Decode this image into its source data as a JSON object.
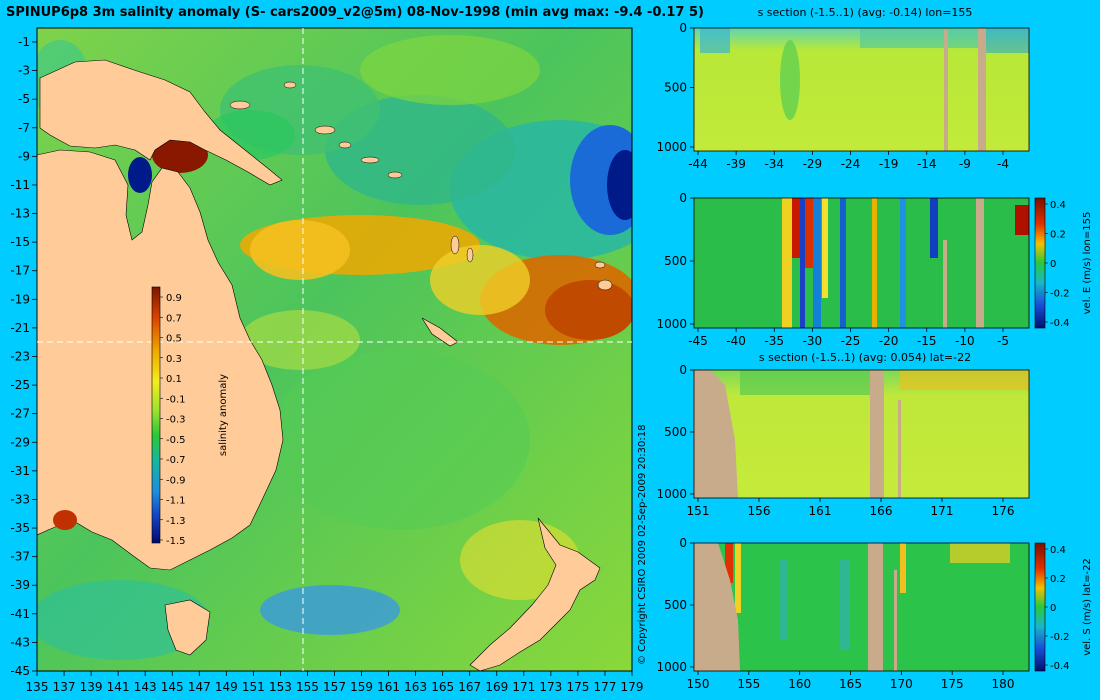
{
  "figure": {
    "title": "SPINUP6p8 3m salinity anomaly (S- cars2009_v2@5m) 08-Nov-1998 (min avg max: -9.4 -0.17 5)",
    "copyright": "© Copyright CSIRO 2009   02-Sep-2009 20:30:18",
    "colors": {
      "background": "#00ccff",
      "land": "#ffcc99",
      "section_land": "#c8ab8a"
    }
  },
  "map": {
    "lon_ticks": [
      "135",
      "137",
      "139",
      "141",
      "143",
      "145",
      "147",
      "149",
      "151",
      "153",
      "155",
      "157",
      "159",
      "161",
      "163",
      "165",
      "167",
      "169",
      "171",
      "173",
      "175",
      "177",
      "179"
    ],
    "lat_ticks": [
      "-1",
      "-3",
      "-5",
      "-7",
      "-9",
      "-11",
      "-13",
      "-15",
      "-17",
      "-19",
      "-21",
      "-23",
      "-25",
      "-27",
      "-29",
      "-31",
      "-33",
      "-35",
      "-37",
      "-39",
      "-41",
      "-43",
      "-45"
    ],
    "section_lon": "155",
    "section_lat": "-22",
    "colorbar": {
      "label": "salinity anomaly",
      "ticks": [
        "0.9",
        "0.7",
        "0.5",
        "0.3",
        "0.1",
        "-0.1",
        "-0.3",
        "-0.5",
        "-0.7",
        "-0.9",
        "-1.1",
        "-1.3",
        "-1.5"
      ]
    }
  },
  "panels": [
    {
      "title": "s section (-1.5..1) (avg: -0.14) lon=155",
      "x_ticks": [
        "-44",
        "-39",
        "-34",
        "-29",
        "-24",
        "-19",
        "-14",
        "-9",
        "-4"
      ],
      "y_ticks": [
        "0",
        "500",
        "1000"
      ],
      "side_label": "",
      "cb_ticks": []
    },
    {
      "title": "",
      "x_ticks": [
        "-45",
        "-40",
        "-35",
        "-30",
        "-25",
        "-20",
        "-15",
        "-10",
        "-5"
      ],
      "y_ticks": [
        "0",
        "500",
        "1000"
      ],
      "side_label": "vel. E (m/s) lon=155",
      "cb_ticks": [
        "0.4",
        "0.2",
        "0",
        "-0.2",
        "-0.4"
      ]
    },
    {
      "title": "s section (-1.5..1) (avg: 0.054) lat=-22",
      "x_ticks": [
        "151",
        "156",
        "161",
        "166",
        "171",
        "176"
      ],
      "y_ticks": [
        "0",
        "500",
        "1000"
      ],
      "side_label": "",
      "cb_ticks": []
    },
    {
      "title": "",
      "x_ticks": [
        "150",
        "155",
        "160",
        "165",
        "170",
        "175",
        "180"
      ],
      "y_ticks": [
        "0",
        "500",
        "1000"
      ],
      "side_label": "vel. S (m/s) lat=-22",
      "cb_ticks": [
        "0.4",
        "0.2",
        "0",
        "-0.2",
        "-0.4"
      ]
    }
  ]
}
